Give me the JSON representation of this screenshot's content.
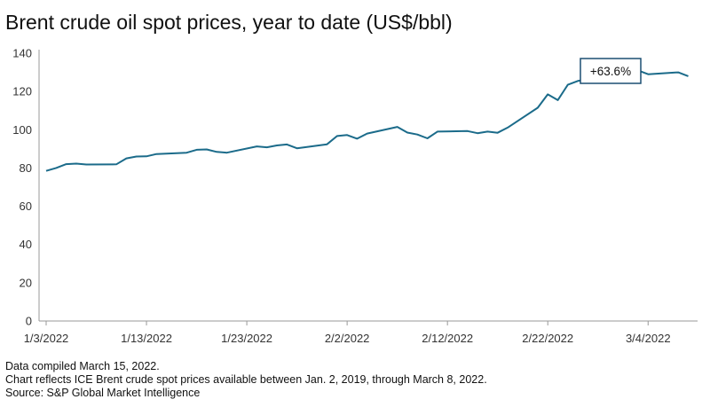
{
  "title": "Brent crude oil spot prices, year to date (US$/bbl)",
  "notes": [
    "Data compiled March 15, 2022.",
    "Chart reflects ICE Brent crude spot prices available between Jan. 2, 2019, through March 8, 2022.",
    "Source: S&P Global Market Intelligence"
  ],
  "colors": {
    "line": "#1b6b8a",
    "annotation_border": "#1b4f72",
    "axis": "#999999"
  },
  "chart_data": {
    "type": "line",
    "title": "Brent crude oil spot prices, year to date (US$/bbl)",
    "xlabel": "",
    "ylabel": "",
    "ylim": [
      0,
      140
    ],
    "yticks": [
      0,
      20,
      40,
      60,
      80,
      100,
      120,
      140
    ],
    "xticks": [
      "1/3/2022",
      "1/13/2022",
      "1/23/2022",
      "2/2/2022",
      "2/12/2022",
      "2/22/2022",
      "3/4/2022"
    ],
    "grid": false,
    "annotation": {
      "text": "+63.6%",
      "at_date": "3/7/2022"
    },
    "series": [
      {
        "x": [
          "1/3/2022",
          "1/4/2022",
          "1/5/2022",
          "1/6/2022",
          "1/7/2022",
          "1/10/2022",
          "1/11/2022",
          "1/12/2022",
          "1/13/2022",
          "1/14/2022",
          "1/17/2022",
          "1/18/2022",
          "1/19/2022",
          "1/20/2022",
          "1/21/2022",
          "1/24/2022",
          "1/25/2022",
          "1/26/2022",
          "1/27/2022",
          "1/28/2022",
          "1/31/2022",
          "2/1/2022",
          "2/2/2022",
          "2/3/2022",
          "2/4/2022",
          "2/7/2022",
          "2/8/2022",
          "2/9/2022",
          "2/10/2022",
          "2/11/2022",
          "2/14/2022",
          "2/15/2022",
          "2/16/2022",
          "2/17/2022",
          "2/18/2022",
          "2/21/2022",
          "2/22/2022",
          "2/23/2022",
          "2/24/2022",
          "2/25/2022",
          "2/28/2022",
          "3/1/2022",
          "3/2/2022",
          "3/3/2022",
          "3/4/2022",
          "3/7/2022",
          "3/8/2022"
        ],
        "values": [
          78.5,
          80.0,
          82.0,
          82.3,
          81.8,
          81.9,
          85.0,
          86.0,
          86.1,
          87.3,
          88.0,
          89.5,
          89.7,
          88.4,
          88.0,
          91.3,
          90.8,
          91.8,
          92.3,
          90.3,
          92.4,
          96.7,
          97.2,
          95.3,
          98.0,
          101.5,
          98.5,
          97.5,
          95.5,
          99.0,
          99.3,
          98.2,
          99.0,
          98.4,
          101.1,
          111.5,
          118.5,
          115.5,
          123.5,
          125.5,
          128.0,
          129.5,
          128.5,
          131.0,
          129.0,
          130.0,
          128.0
        ]
      }
    ]
  }
}
